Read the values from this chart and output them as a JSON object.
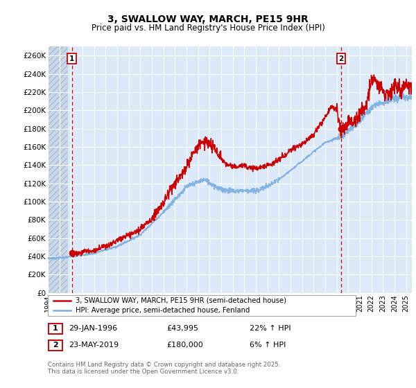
{
  "title": "3, SWALLOW WAY, MARCH, PE15 9HR",
  "subtitle": "Price paid vs. HM Land Registry's House Price Index (HPI)",
  "xlim_start": 1994.0,
  "xlim_end": 2025.5,
  "ylim": [
    0,
    270000
  ],
  "yticks": [
    0,
    20000,
    40000,
    60000,
    80000,
    100000,
    120000,
    140000,
    160000,
    180000,
    200000,
    220000,
    240000,
    260000
  ],
  "ytick_labels": [
    "£0",
    "£20K",
    "£40K",
    "£60K",
    "£80K",
    "£100K",
    "£120K",
    "£140K",
    "£160K",
    "£180K",
    "£200K",
    "£220K",
    "£240K",
    "£260K"
  ],
  "bg_color": "#dce9f8",
  "hatch_color": "#c8d8ea",
  "grid_color": "#ffffff",
  "red_line_color": "#cc0000",
  "blue_line_color": "#7aade0",
  "marker1_x": 1996.08,
  "marker1_y": 43995,
  "marker2_x": 2019.39,
  "marker2_y": 180000,
  "vline1_x": 1996.08,
  "vline2_x": 2019.39,
  "legend_label1": "3, SWALLOW WAY, MARCH, PE15 9HR (semi-detached house)",
  "legend_label2": "HPI: Average price, semi-detached house, Fenland",
  "note1_label": "1",
  "note1_date": "29-JAN-1996",
  "note1_price": "£43,995",
  "note1_hpi": "22% ↑ HPI",
  "note2_label": "2",
  "note2_date": "23-MAY-2019",
  "note2_price": "£180,000",
  "note2_hpi": "6% ↑ HPI",
  "footer": "Contains HM Land Registry data © Crown copyright and database right 2025.\nThis data is licensed under the Open Government Licence v3.0.",
  "xticks": [
    1994,
    1995,
    1996,
    1997,
    1998,
    1999,
    2000,
    2001,
    2002,
    2003,
    2004,
    2005,
    2006,
    2007,
    2008,
    2009,
    2010,
    2011,
    2012,
    2013,
    2014,
    2015,
    2016,
    2017,
    2018,
    2019,
    2020,
    2021,
    2022,
    2023,
    2024,
    2025
  ]
}
